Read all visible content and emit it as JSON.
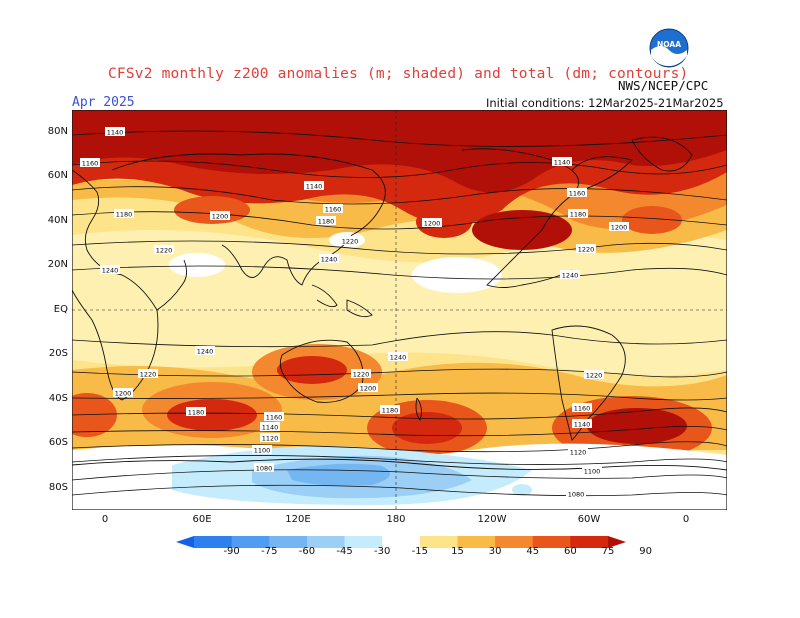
{
  "header": {
    "title": "CFSv2 monthly z200 anomalies (m; shaded) and total (dm; contours)",
    "agency": "NWS/NCEP/CPC",
    "month": "Apr 2025",
    "initial_conditions": "Initial conditions: 12Mar2025-21Mar2025",
    "logo_text": "NOAA"
  },
  "axes": {
    "lat_labels": [
      "80N",
      "60N",
      "40N",
      "20N",
      "EQ",
      "20S",
      "40S",
      "60S",
      "80S"
    ],
    "lon_labels": [
      "0",
      "60E",
      "120E",
      "180",
      "120W",
      "60W",
      "0"
    ]
  },
  "colorbar": {
    "ticks": [
      "-90",
      "-75",
      "-60",
      "-45",
      "-30",
      "-15",
      "15",
      "30",
      "45",
      "60",
      "75",
      "90"
    ],
    "colors": [
      "#1560e8",
      "#2e80ee",
      "#4f9cf0",
      "#74b6f2",
      "#9ccff6",
      "#c4ecfc",
      "#ffffff",
      "#fde48a",
      "#f9bb48",
      "#f4882e",
      "#e9561c",
      "#d4280f",
      "#b01008"
    ]
  },
  "contour_labels": [
    "1140",
    "1160",
    "1180",
    "1200",
    "1220",
    "1240",
    "1140",
    "1160",
    "1180",
    "1200",
    "1220",
    "1240",
    "1220",
    "1240",
    "1160",
    "1140",
    "1180",
    "1200",
    "1240",
    "1220",
    "1200",
    "1180",
    "1160",
    "1140",
    "1120",
    "1100",
    "1080",
    "1220",
    "1200",
    "1180",
    "1160",
    "1140",
    "1120",
    "1100",
    "1080",
    "1240",
    "1220",
    "1180"
  ],
  "colors": {
    "title": "#e0403c",
    "month": "#3a50d8",
    "strong_positive": "#b01008",
    "negative": "#9ccff6"
  }
}
